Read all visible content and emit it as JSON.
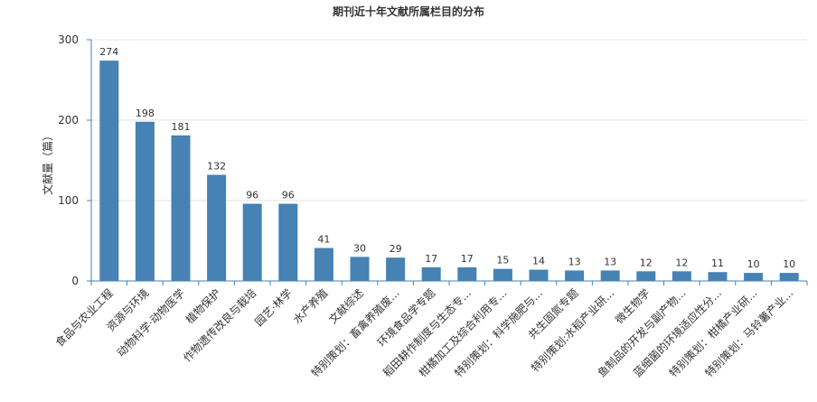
{
  "chart_data": {
    "type": "bar",
    "title": "期刊近十年文献所属栏目的分布",
    "xlabel": "",
    "ylabel": "文献量（篇）",
    "ylim": [
      0,
      300
    ],
    "yticks": [
      0,
      100,
      200,
      300
    ],
    "grid": true,
    "bar_color": "#4682b4",
    "categories": [
      "食品与农业工程",
      "资源与环境",
      "动物科学·动物医学",
      "植物保护",
      "作物遗传改良与栽培",
      "园艺·林学",
      "水产养殖",
      "文献综述",
      "特别策划：畜禽养殖废...",
      "环境食品学专题",
      "稻田耕作制度与生态专...",
      "柑橘加工及综合利用专...",
      "特别策划：科学施肥与...",
      "共生固氮专题",
      "特别策划:水稻产业研...",
      "微生物学",
      "鱼制品的开发与副产物...",
      "蓝细菌的环境适应性分...",
      "特别策划：柑橘产业研...",
      "特别策划：马铃薯产业..."
    ],
    "values": [
      274,
      198,
      181,
      132,
      96,
      96,
      41,
      30,
      29,
      17,
      17,
      15,
      14,
      13,
      13,
      12,
      12,
      11,
      10,
      10
    ]
  }
}
